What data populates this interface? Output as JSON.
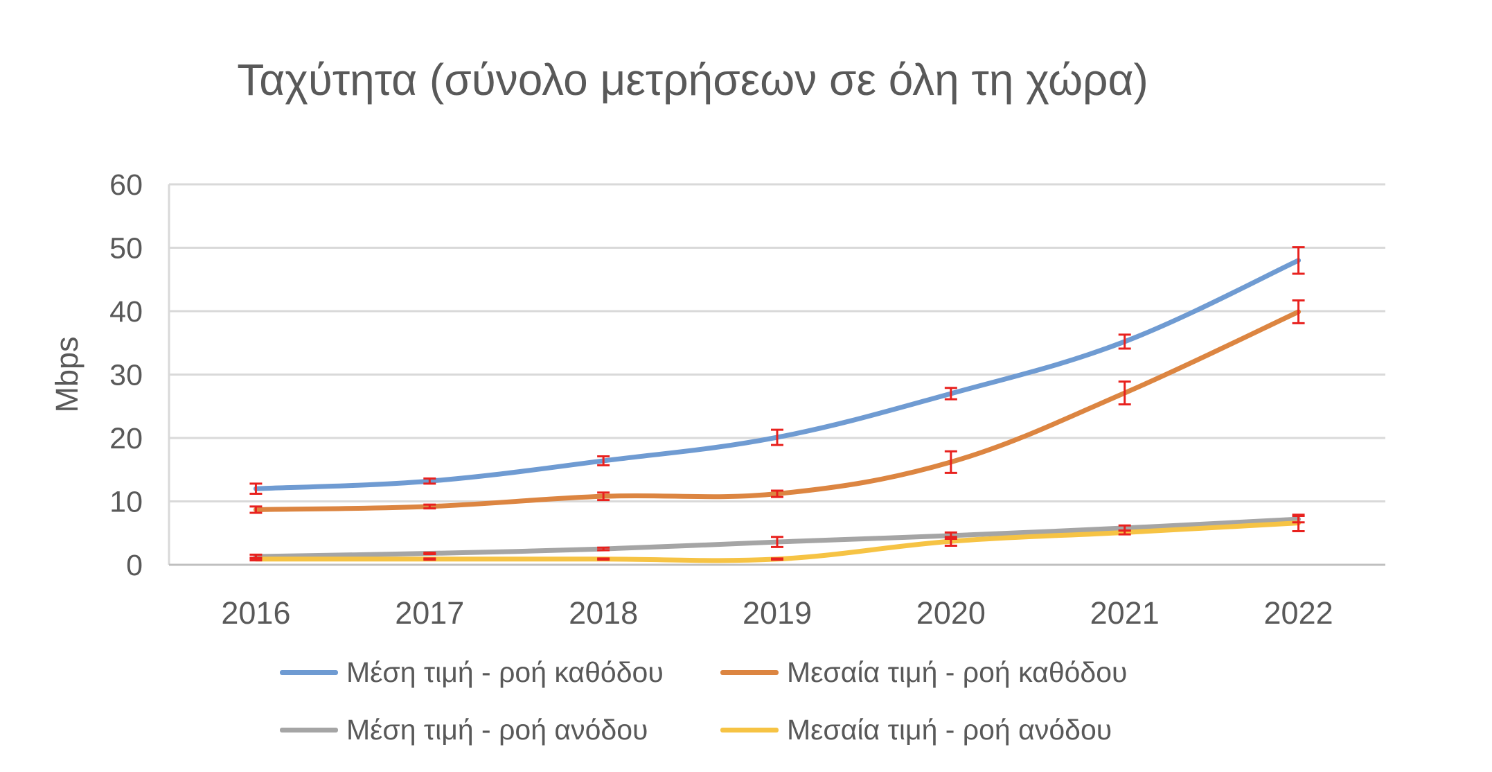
{
  "chart_data": {
    "type": "line",
    "title": "Ταχύτητα (σύνολο μετρήσεων σε όλη τη χώρα)",
    "xlabel": "",
    "ylabel": "Mbps",
    "categories": [
      "2016",
      "2017",
      "2018",
      "2019",
      "2020",
      "2021",
      "2022"
    ],
    "ylim": [
      0,
      60
    ],
    "yticks": [
      0,
      10,
      20,
      30,
      40,
      50,
      60
    ],
    "grid": true,
    "legend_position": "bottom",
    "error_bar_color": "#e8211e",
    "series": [
      {
        "name": "Μέση τιμή - ροή καθόδου",
        "color": "#6f9bd2",
        "values": [
          12,
          13.2,
          16.4,
          20.1,
          27,
          35.2,
          48
        ],
        "errors": [
          0.8,
          0.4,
          0.7,
          1.2,
          0.9,
          1.1,
          2.1
        ]
      },
      {
        "name": "Μεσαία τιμή - ροή καθόδου",
        "color": "#dc8541",
        "values": [
          8.7,
          9.2,
          10.8,
          11.2,
          16.2,
          27.1,
          39.9
        ],
        "errors": [
          0.5,
          0.3,
          0.6,
          0.5,
          1.7,
          1.8,
          1.8
        ]
      },
      {
        "name": "Μέση τιμή - ροή ανόδου",
        "color": "#a5a5a5",
        "values": [
          1.3,
          1.8,
          2.5,
          3.6,
          4.6,
          5.8,
          7.2
        ],
        "errors": [
          0.3,
          0.1,
          0.2,
          0.8,
          0.5,
          0.4,
          0.5
        ]
      },
      {
        "name": "Μεσαία τιμή - ροή ανόδου",
        "color": "#f6c344",
        "values": [
          0.9,
          0.9,
          0.9,
          0.9,
          3.7,
          5.1,
          6.6
        ],
        "errors": [
          0.2,
          0.1,
          0.1,
          0.1,
          0.7,
          0.3,
          1.3
        ]
      }
    ]
  }
}
